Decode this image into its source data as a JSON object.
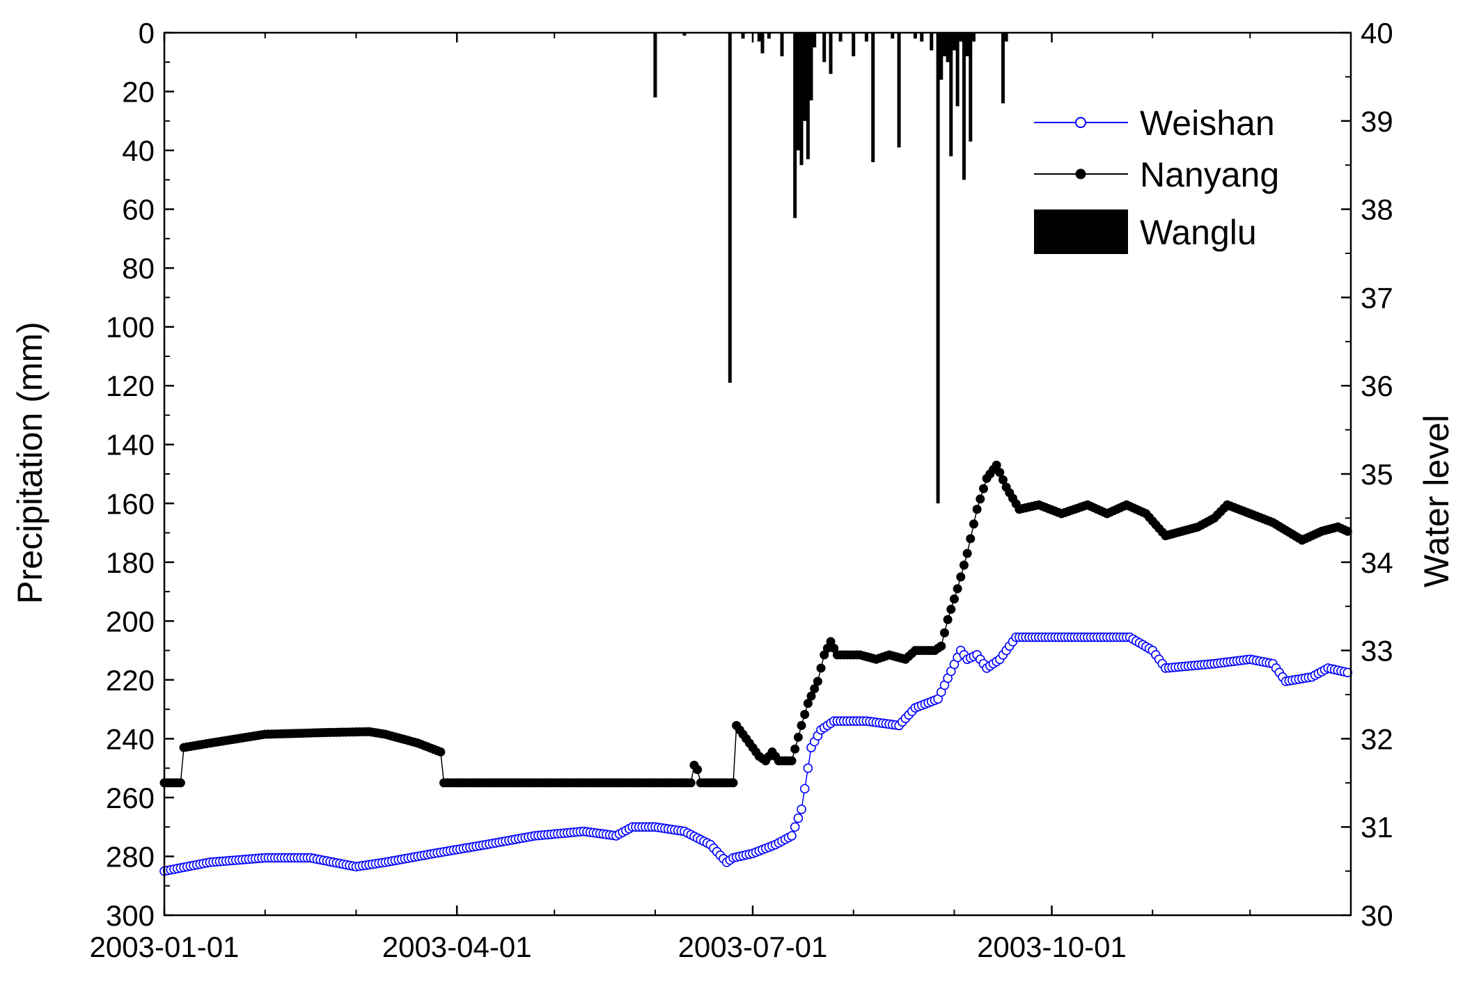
{
  "chart_data": {
    "type": "line",
    "title": "",
    "x_axis": {
      "type": "date",
      "range": [
        "2003-01-01",
        "2003-12-31"
      ],
      "tick_labels": [
        "2003-01-01",
        "2003-04-01",
        "2003-07-01",
        "2003-10-01"
      ],
      "tick_values": [
        "2003-01-01",
        "2003-04-01",
        "2003-07-01",
        "2003-10-01"
      ],
      "minor_ticks": "monthly"
    },
    "y_left": {
      "label": "Precipitation (mm)",
      "range": [
        0,
        300
      ],
      "reversed": true,
      "ticks": [
        0,
        20,
        40,
        60,
        80,
        100,
        120,
        140,
        160,
        180,
        200,
        220,
        240,
        260,
        280,
        300
      ],
      "tick_labels": [
        "0",
        "20",
        "40",
        "60",
        "80",
        "100",
        "120",
        "140",
        "160",
        "180",
        "200",
        "220",
        "240",
        "260",
        "280",
        "300"
      ]
    },
    "y_right": {
      "label": "Water level",
      "range": [
        30,
        40
      ],
      "ticks": [
        30,
        31,
        32,
        33,
        34,
        35,
        36,
        37,
        38,
        39,
        40
      ],
      "tick_labels": [
        "30",
        "31",
        "32",
        "33",
        "34",
        "35",
        "36",
        "37",
        "38",
        "39",
        "40"
      ]
    },
    "grid": false,
    "legend": {
      "position": "top-right",
      "entries": [
        {
          "name": "Weishan",
          "style": "open-circle-line",
          "color": "#0000ff"
        },
        {
          "name": "Nanyang",
          "style": "filled-circle-line",
          "color": "#000000"
        },
        {
          "name": "Wanglu",
          "style": "bar",
          "color": "#000000"
        }
      ]
    },
    "series": [
      {
        "name": "Wanglu",
        "axis": "left",
        "type": "bar",
        "color": "#000000",
        "points": [
          [
            "2003-06-01",
            22
          ],
          [
            "2003-06-10",
            1
          ],
          [
            "2003-06-24",
            119
          ],
          [
            "2003-06-28",
            2
          ],
          [
            "2003-07-03",
            3
          ],
          [
            "2003-07-04",
            7
          ],
          [
            "2003-07-06",
            2
          ],
          [
            "2003-07-10",
            8
          ],
          [
            "2003-07-14",
            63
          ],
          [
            "2003-07-15",
            40
          ],
          [
            "2003-07-16",
            45
          ],
          [
            "2003-07-17",
            30
          ],
          [
            "2003-07-18",
            43
          ],
          [
            "2003-07-19",
            23
          ],
          [
            "2003-07-20",
            5
          ],
          [
            "2003-07-23",
            10
          ],
          [
            "2003-07-25",
            14
          ],
          [
            "2003-07-28",
            3
          ],
          [
            "2003-08-01",
            8
          ],
          [
            "2003-08-05",
            3
          ],
          [
            "2003-08-07",
            44
          ],
          [
            "2003-08-13",
            2
          ],
          [
            "2003-08-15",
            39
          ],
          [
            "2003-08-20",
            2
          ],
          [
            "2003-08-22",
            3
          ],
          [
            "2003-08-25",
            6
          ],
          [
            "2003-08-27",
            160
          ],
          [
            "2003-08-28",
            16
          ],
          [
            "2003-08-29",
            8
          ],
          [
            "2003-08-30",
            10
          ],
          [
            "2003-08-31",
            42
          ],
          [
            "2003-09-01",
            6
          ],
          [
            "2003-09-02",
            25
          ],
          [
            "2003-09-03",
            3
          ],
          [
            "2003-09-04",
            50
          ],
          [
            "2003-09-05",
            8
          ],
          [
            "2003-09-06",
            37
          ],
          [
            "2003-09-07",
            3
          ],
          [
            "2003-09-16",
            24
          ],
          [
            "2003-09-17",
            3
          ]
        ]
      },
      {
        "name": "Nanyang",
        "axis": "right",
        "type": "line",
        "marker": "filled-circle",
        "color": "#000000",
        "points": [
          [
            "2003-01-01",
            31.5
          ],
          [
            "2003-01-06",
            31.5
          ],
          [
            "2003-01-07",
            31.9
          ],
          [
            "2003-01-15",
            31.95
          ],
          [
            "2003-02-01",
            32.05
          ],
          [
            "2003-02-20",
            32.07
          ],
          [
            "2003-03-05",
            32.08
          ],
          [
            "2003-03-10",
            32.05
          ],
          [
            "2003-03-20",
            31.95
          ],
          [
            "2003-03-27",
            31.85
          ],
          [
            "2003-03-28",
            31.5
          ],
          [
            "2003-05-01",
            31.5
          ],
          [
            "2003-06-12",
            31.5
          ],
          [
            "2003-06-13",
            31.7
          ],
          [
            "2003-06-14",
            31.65
          ],
          [
            "2003-06-15",
            31.5
          ],
          [
            "2003-06-25",
            31.5
          ],
          [
            "2003-06-26",
            32.15
          ],
          [
            "2003-06-29",
            32.0
          ],
          [
            "2003-07-03",
            31.8
          ],
          [
            "2003-07-05",
            31.75
          ],
          [
            "2003-07-07",
            31.85
          ],
          [
            "2003-07-09",
            31.75
          ],
          [
            "2003-07-13",
            31.75
          ],
          [
            "2003-07-16",
            32.15
          ],
          [
            "2003-07-18",
            32.4
          ],
          [
            "2003-07-21",
            32.65
          ],
          [
            "2003-07-23",
            32.95
          ],
          [
            "2003-07-25",
            33.1
          ],
          [
            "2003-07-27",
            32.95
          ],
          [
            "2003-08-03",
            32.95
          ],
          [
            "2003-08-08",
            32.9
          ],
          [
            "2003-08-12",
            32.95
          ],
          [
            "2003-08-17",
            32.9
          ],
          [
            "2003-08-20",
            33.0
          ],
          [
            "2003-08-26",
            33.0
          ],
          [
            "2003-08-28",
            33.05
          ],
          [
            "2003-08-30",
            33.35
          ],
          [
            "2003-09-02",
            33.7
          ],
          [
            "2003-09-05",
            34.1
          ],
          [
            "2003-09-08",
            34.6
          ],
          [
            "2003-09-11",
            34.95
          ],
          [
            "2003-09-14",
            35.1
          ],
          [
            "2003-09-17",
            34.85
          ],
          [
            "2003-09-21",
            34.6
          ],
          [
            "2003-09-27",
            34.65
          ],
          [
            "2003-10-04",
            34.55
          ],
          [
            "2003-10-12",
            34.65
          ],
          [
            "2003-10-18",
            34.55
          ],
          [
            "2003-10-24",
            34.65
          ],
          [
            "2003-10-30",
            34.55
          ],
          [
            "2003-11-05",
            34.3
          ],
          [
            "2003-11-15",
            34.4
          ],
          [
            "2003-11-20",
            34.5
          ],
          [
            "2003-11-24",
            34.65
          ],
          [
            "2003-12-01",
            34.55
          ],
          [
            "2003-12-08",
            34.45
          ],
          [
            "2003-12-17",
            34.25
          ],
          [
            "2003-12-23",
            34.35
          ],
          [
            "2003-12-28",
            34.4
          ],
          [
            "2003-12-31",
            34.35
          ]
        ]
      },
      {
        "name": "Weishan",
        "axis": "right",
        "type": "line",
        "marker": "open-circle",
        "color": "#0000ff",
        "points": [
          [
            "2003-01-01",
            30.5
          ],
          [
            "2003-01-15",
            30.6
          ],
          [
            "2003-02-01",
            30.65
          ],
          [
            "2003-02-15",
            30.65
          ],
          [
            "2003-03-01",
            30.55
          ],
          [
            "2003-03-10",
            30.6
          ],
          [
            "2003-03-25",
            30.7
          ],
          [
            "2003-04-10",
            30.8
          ],
          [
            "2003-04-25",
            30.9
          ],
          [
            "2003-05-10",
            30.95
          ],
          [
            "2003-05-20",
            30.9
          ],
          [
            "2003-05-25",
            31.0
          ],
          [
            "2003-06-01",
            31.0
          ],
          [
            "2003-06-10",
            30.95
          ],
          [
            "2003-06-18",
            30.8
          ],
          [
            "2003-06-23",
            30.6
          ],
          [
            "2003-06-25",
            30.65
          ],
          [
            "2003-07-01",
            30.7
          ],
          [
            "2003-07-08",
            30.8
          ],
          [
            "2003-07-13",
            30.9
          ],
          [
            "2003-07-16",
            31.2
          ],
          [
            "2003-07-19",
            31.9
          ],
          [
            "2003-07-22",
            32.1
          ],
          [
            "2003-07-26",
            32.2
          ],
          [
            "2003-08-05",
            32.2
          ],
          [
            "2003-08-15",
            32.15
          ],
          [
            "2003-08-20",
            32.35
          ],
          [
            "2003-08-27",
            32.45
          ],
          [
            "2003-09-03",
            33.0
          ],
          [
            "2003-09-05",
            32.9
          ],
          [
            "2003-09-08",
            32.95
          ],
          [
            "2003-09-11",
            32.8
          ],
          [
            "2003-09-15",
            32.9
          ],
          [
            "2003-09-20",
            33.15
          ],
          [
            "2003-10-01",
            33.15
          ],
          [
            "2003-10-12",
            33.15
          ],
          [
            "2003-10-25",
            33.15
          ],
          [
            "2003-11-01",
            33.0
          ],
          [
            "2003-11-05",
            32.8
          ],
          [
            "2003-11-20",
            32.85
          ],
          [
            "2003-12-01",
            32.9
          ],
          [
            "2003-12-08",
            32.85
          ],
          [
            "2003-12-12",
            32.65
          ],
          [
            "2003-12-20",
            32.7
          ],
          [
            "2003-12-25",
            32.8
          ],
          [
            "2003-12-31",
            32.75
          ]
        ]
      }
    ]
  }
}
